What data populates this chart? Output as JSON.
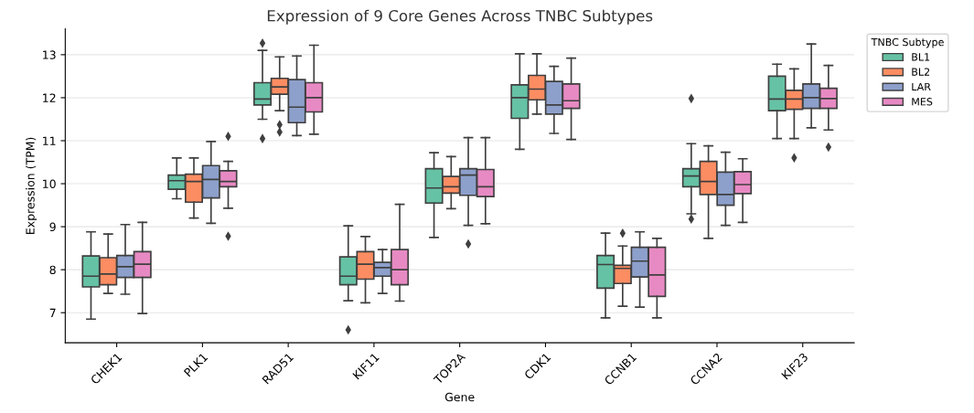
{
  "chart_data": {
    "type": "box",
    "title": "Expression of 9 Core Genes Across TNBC Subtypes",
    "xlabel": "Gene",
    "ylabel": "Expression (TPM)",
    "legend_title": "TNBC Subtype",
    "categories": [
      "CHEK1",
      "PLK1",
      "RAD51",
      "KIF11",
      "TOP2A",
      "CDK1",
      "CCNB1",
      "CCNA2",
      "KIF23"
    ],
    "ylim": [
      6.3,
      13.6
    ],
    "yticks": [
      7,
      8,
      9,
      10,
      11,
      12,
      13
    ],
    "grid": "y",
    "legend": "top right",
    "series": [
      {
        "name": "BL1",
        "color": "#66c2a5",
        "boxes": [
          {
            "low": 6.85,
            "q1": 7.6,
            "median": 7.85,
            "q3": 8.32,
            "high": 8.88
          },
          {
            "low": 9.65,
            "q1": 9.87,
            "median": 10.07,
            "q3": 10.2,
            "high": 10.6
          },
          {
            "low": 11.5,
            "q1": 11.83,
            "median": 11.97,
            "q3": 12.35,
            "high": 13.1,
            "outliers": [
              13.27,
              11.05
            ]
          },
          {
            "low": 7.28,
            "q1": 7.65,
            "median": 7.85,
            "q3": 8.3,
            "high": 9.02,
            "outliers": [
              6.6
            ]
          },
          {
            "low": 8.75,
            "q1": 9.55,
            "median": 9.9,
            "q3": 10.35,
            "high": 10.72
          },
          {
            "low": 10.8,
            "q1": 11.52,
            "median": 12.0,
            "q3": 12.3,
            "high": 13.02
          },
          {
            "low": 6.88,
            "q1": 7.57,
            "median": 8.12,
            "q3": 8.33,
            "high": 8.85
          },
          {
            "low": 9.3,
            "q1": 9.93,
            "median": 10.18,
            "q3": 10.35,
            "high": 10.93,
            "outliers": [
              11.98,
              9.18
            ]
          },
          {
            "low": 11.05,
            "q1": 11.7,
            "median": 11.97,
            "q3": 12.5,
            "high": 12.78
          }
        ]
      },
      {
        "name": "BL2",
        "color": "#fc8d62",
        "boxes": [
          {
            "low": 7.45,
            "q1": 7.65,
            "median": 7.9,
            "q3": 8.28,
            "high": 8.83
          },
          {
            "low": 9.2,
            "q1": 9.57,
            "median": 10.05,
            "q3": 10.22,
            "high": 10.6
          },
          {
            "low": 11.7,
            "q1": 12.08,
            "median": 12.25,
            "q3": 12.45,
            "high": 12.95,
            "outliers": [
              11.37,
              11.2
            ]
          },
          {
            "low": 7.23,
            "q1": 7.78,
            "median": 8.13,
            "q3": 8.42,
            "high": 8.77
          },
          {
            "low": 9.42,
            "q1": 9.78,
            "median": 9.93,
            "q3": 10.17,
            "high": 10.63
          },
          {
            "low": 11.62,
            "q1": 11.95,
            "median": 12.2,
            "q3": 12.52,
            "high": 13.02
          },
          {
            "low": 7.15,
            "q1": 7.68,
            "median": 8.03,
            "q3": 8.1,
            "high": 8.55,
            "outliers": [
              8.85
            ]
          },
          {
            "low": 8.73,
            "q1": 9.75,
            "median": 10.05,
            "q3": 10.52,
            "high": 10.88
          },
          {
            "low": 11.05,
            "q1": 11.73,
            "median": 11.97,
            "q3": 12.17,
            "high": 12.67,
            "outliers": [
              10.6
            ]
          }
        ]
      },
      {
        "name": "LAR",
        "color": "#8da0cb",
        "boxes": [
          {
            "low": 7.43,
            "q1": 7.82,
            "median": 8.07,
            "q3": 8.33,
            "high": 9.05
          },
          {
            "low": 9.08,
            "q1": 9.67,
            "median": 10.1,
            "q3": 10.42,
            "high": 10.98
          },
          {
            "low": 11.12,
            "q1": 11.42,
            "median": 11.78,
            "q3": 12.42,
            "high": 12.97
          },
          {
            "low": 7.45,
            "q1": 7.85,
            "median": 8.05,
            "q3": 8.17,
            "high": 8.47
          },
          {
            "low": 9.03,
            "q1": 9.73,
            "median": 10.2,
            "q3": 10.35,
            "high": 11.07,
            "outliers": [
              8.6
            ]
          },
          {
            "low": 11.17,
            "q1": 11.62,
            "median": 11.83,
            "q3": 12.38,
            "high": 12.73
          },
          {
            "low": 7.13,
            "q1": 7.83,
            "median": 8.2,
            "q3": 8.52,
            "high": 8.88
          },
          {
            "low": 9.03,
            "q1": 9.5,
            "median": 9.75,
            "q3": 10.27,
            "high": 10.73
          },
          {
            "low": 11.3,
            "q1": 11.75,
            "median": 12.0,
            "q3": 12.32,
            "high": 13.25
          }
        ]
      },
      {
        "name": "MES",
        "color": "#e78ac3",
        "boxes": [
          {
            "low": 6.98,
            "q1": 7.82,
            "median": 8.13,
            "q3": 8.42,
            "high": 9.1
          },
          {
            "low": 9.43,
            "q1": 9.93,
            "median": 10.05,
            "q3": 10.3,
            "high": 10.52,
            "outliers": [
              11.1,
              8.78
            ]
          },
          {
            "low": 11.15,
            "q1": 11.67,
            "median": 12.0,
            "q3": 12.35,
            "high": 13.22
          },
          {
            "low": 7.27,
            "q1": 7.65,
            "median": 8.0,
            "q3": 8.47,
            "high": 9.52
          },
          {
            "low": 9.07,
            "q1": 9.7,
            "median": 9.93,
            "q3": 10.33,
            "high": 11.07
          },
          {
            "low": 11.03,
            "q1": 11.75,
            "median": 11.93,
            "q3": 12.32,
            "high": 12.92
          },
          {
            "low": 6.88,
            "q1": 7.38,
            "median": 7.88,
            "q3": 8.52,
            "high": 8.73
          },
          {
            "low": 9.1,
            "q1": 9.77,
            "median": 9.98,
            "q3": 10.28,
            "high": 10.58
          },
          {
            "low": 11.25,
            "q1": 11.75,
            "median": 11.98,
            "q3": 12.22,
            "high": 12.75,
            "outliers": [
              10.85
            ]
          }
        ]
      }
    ]
  }
}
